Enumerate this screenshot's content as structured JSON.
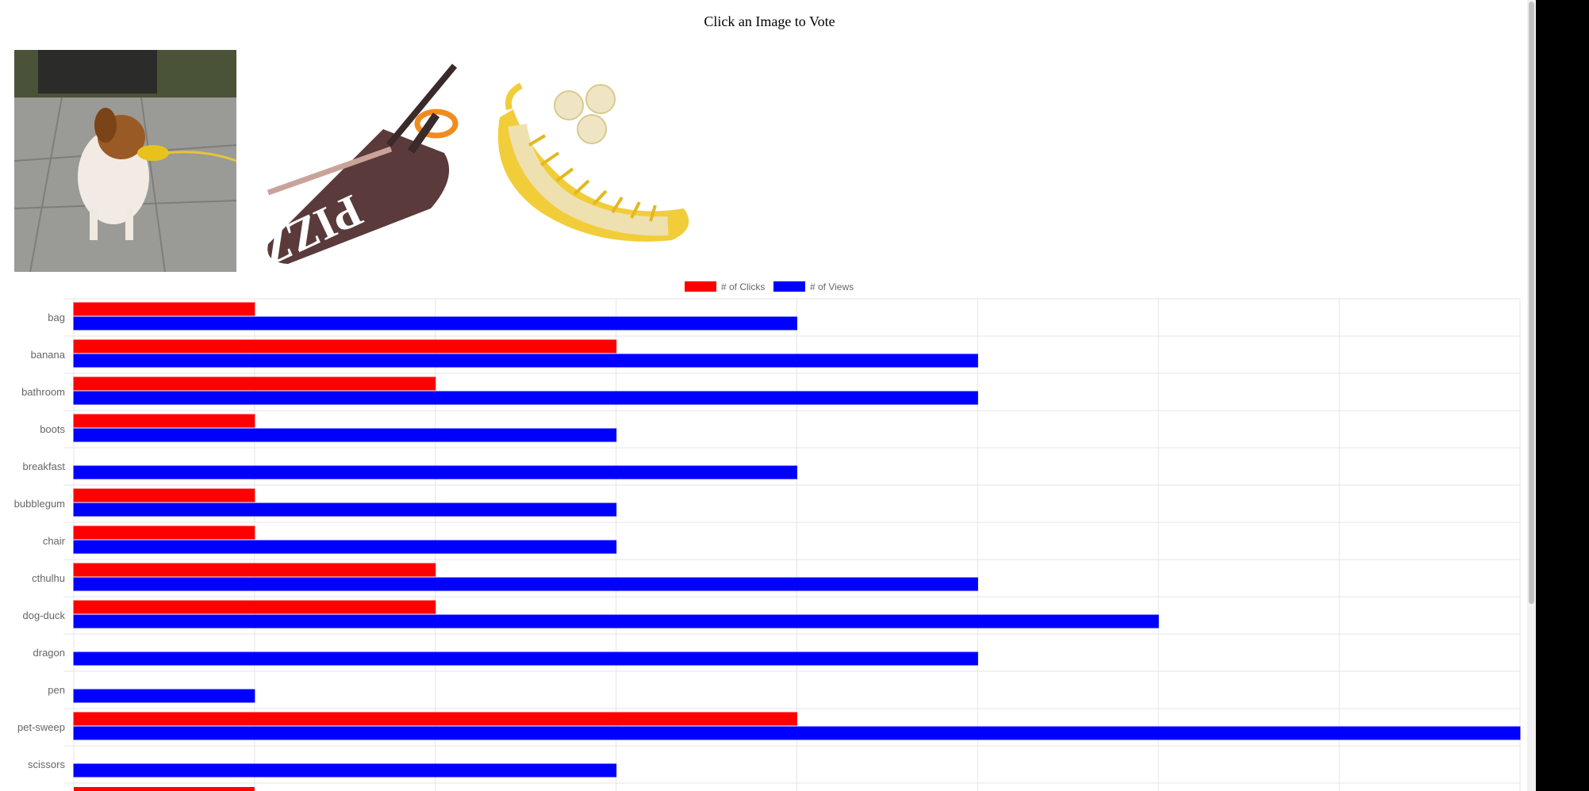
{
  "page": {
    "heading": "Click an Image to Vote"
  },
  "images": [
    {
      "label": "dog-duck",
      "icon": "dog-with-duck-muzzle-image"
    },
    {
      "label": "pizza scissors",
      "icon": "pizza-scissors-image"
    },
    {
      "label": "banana slicer",
      "icon": "banana-slicer-image"
    }
  ],
  "colors": {
    "clicks": "#ff0000",
    "views": "#0000ff",
    "grid": "#e5e5e5",
    "tick_text": "#666666"
  },
  "chart_data": {
    "type": "bar",
    "orientation": "horizontal",
    "categories": [
      "bag",
      "banana",
      "bathroom",
      "boots",
      "breakfast",
      "bubblegum",
      "chair",
      "cthulhu",
      "dog-duck",
      "dragon",
      "pen",
      "pet-sweep",
      "scissors"
    ],
    "series": [
      {
        "name": "# of Clicks",
        "color": "#ff0000",
        "values": [
          1,
          3,
          2,
          1,
          0,
          1,
          1,
          2,
          2,
          0,
          0,
          4,
          0
        ]
      },
      {
        "name": "# of Views",
        "color": "#0000ff",
        "values": [
          4,
          5,
          5,
          3,
          4,
          3,
          3,
          5,
          6,
          5,
          1,
          8,
          3
        ]
      }
    ],
    "xlim": [
      0,
      8
    ],
    "grid": true,
    "legend": "top-center",
    "title": "",
    "xlabel": "",
    "ylabel": ""
  }
}
